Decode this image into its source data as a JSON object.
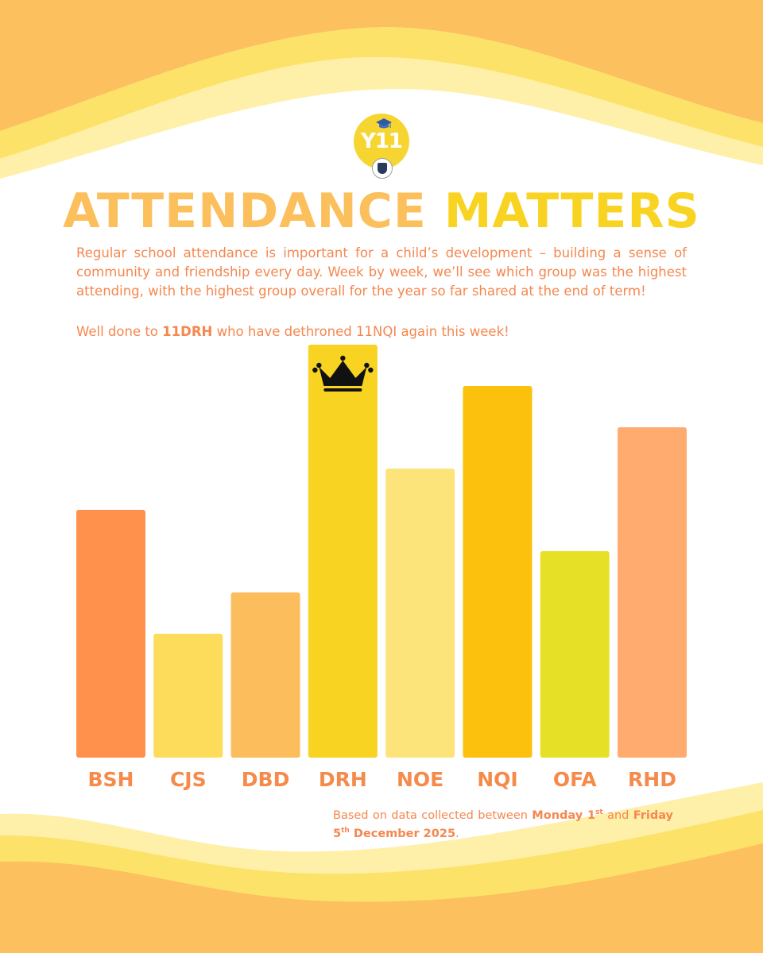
{
  "colors": {
    "title_first": "#fbbf5c",
    "title_second": "#f9d321",
    "body_text": "#f5874f",
    "label": "#f58a4b",
    "wave_dark": "#fcc05e",
    "wave_mid": "#fde26a",
    "wave_light": "#fef0a8"
  },
  "logo": {
    "text": "Y11",
    "icons": [
      "graduation-cap-icon",
      "school-crest-icon"
    ]
  },
  "title": {
    "part1": "ATTENDANCE",
    "part2": "MATTERS"
  },
  "intro": "Regular school attendance is important for a child’s development – building a sense of community and friendship every day. Week by week, we’ll see which group was the highest attending, with the highest group overall for the year so far shared at the end of term!",
  "highlight": {
    "prefix": "Well done to ",
    "group": "11DRH",
    "suffix": " who have dethroned 11NQI again this week!"
  },
  "chart_data": {
    "type": "bar",
    "title": "",
    "xlabel": "",
    "ylabel": "",
    "ylim": [
      0,
      10
    ],
    "grid": false,
    "categories": [
      "BSH",
      "CJS",
      "DBD",
      "DRH",
      "NOE",
      "NQI",
      "OFA",
      "RHD"
    ],
    "values": [
      6,
      3,
      4,
      10,
      7,
      9,
      5,
      8
    ],
    "colors": [
      "#ff914d",
      "#fddc5c",
      "#fcbd5c",
      "#f9d321",
      "#fde47a",
      "#fcc10c",
      "#e6e127",
      "#ffab70"
    ],
    "winner": "DRH",
    "winner_marker": "crown-icon"
  },
  "footnote": {
    "p1": "Based on data collected between ",
    "day1": "Monday 1",
    "sup1": "st",
    "p2": " and ",
    "day2": "Friday 5",
    "sup2": "th",
    "day2_rest": " December 2025",
    "end": "."
  }
}
